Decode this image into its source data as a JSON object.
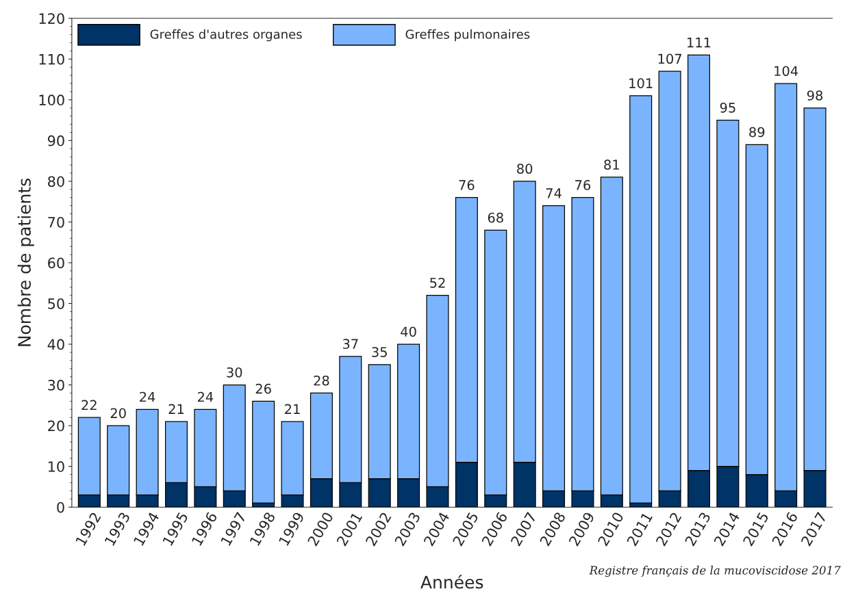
{
  "chart_data": {
    "type": "bar",
    "stacked": true,
    "xlabel": "Années",
    "ylabel": "Nombre de patients",
    "categories": [
      "1992",
      "1993",
      "1994",
      "1995",
      "1996",
      "1997",
      "1998",
      "1999",
      "2000",
      "2001",
      "2002",
      "2003",
      "2004",
      "2005",
      "2006",
      "2007",
      "2008",
      "2009",
      "2010",
      "2011",
      "2012",
      "2013",
      "2014",
      "2015",
      "2016",
      "2017"
    ],
    "series": [
      {
        "name": "Greffes d'autres organes",
        "color": "#003366",
        "values": [
          3,
          3,
          3,
          6,
          5,
          4,
          1,
          3,
          7,
          6,
          7,
          7,
          5,
          11,
          3,
          11,
          4,
          4,
          3,
          1,
          4,
          9,
          10,
          8,
          4,
          9
        ]
      },
      {
        "name": "Greffes pulmonaires",
        "color": "#7ab4ff",
        "values": [
          19,
          17,
          21,
          15,
          19,
          26,
          25,
          18,
          21,
          31,
          28,
          33,
          47,
          65,
          65,
          69,
          70,
          72,
          78,
          100,
          103,
          102,
          85,
          81,
          100,
          89
        ]
      }
    ],
    "totals": [
      "22",
      "20",
      "24",
      "21",
      "24",
      "30",
      "26",
      "21",
      "28",
      "37",
      "35",
      "40",
      "52",
      "76",
      "68",
      "80",
      "74",
      "76",
      "81",
      "101",
      "107",
      "111",
      "95",
      "89",
      "104",
      "98"
    ],
    "ylim": [
      0,
      120
    ],
    "yticks": [
      0,
      10,
      20,
      30,
      40,
      50,
      60,
      70,
      80,
      90,
      100,
      110,
      120
    ],
    "grid": false,
    "legend": "top left",
    "annotations": [
      "Registre français de la mucoviscidose 2017"
    ]
  }
}
